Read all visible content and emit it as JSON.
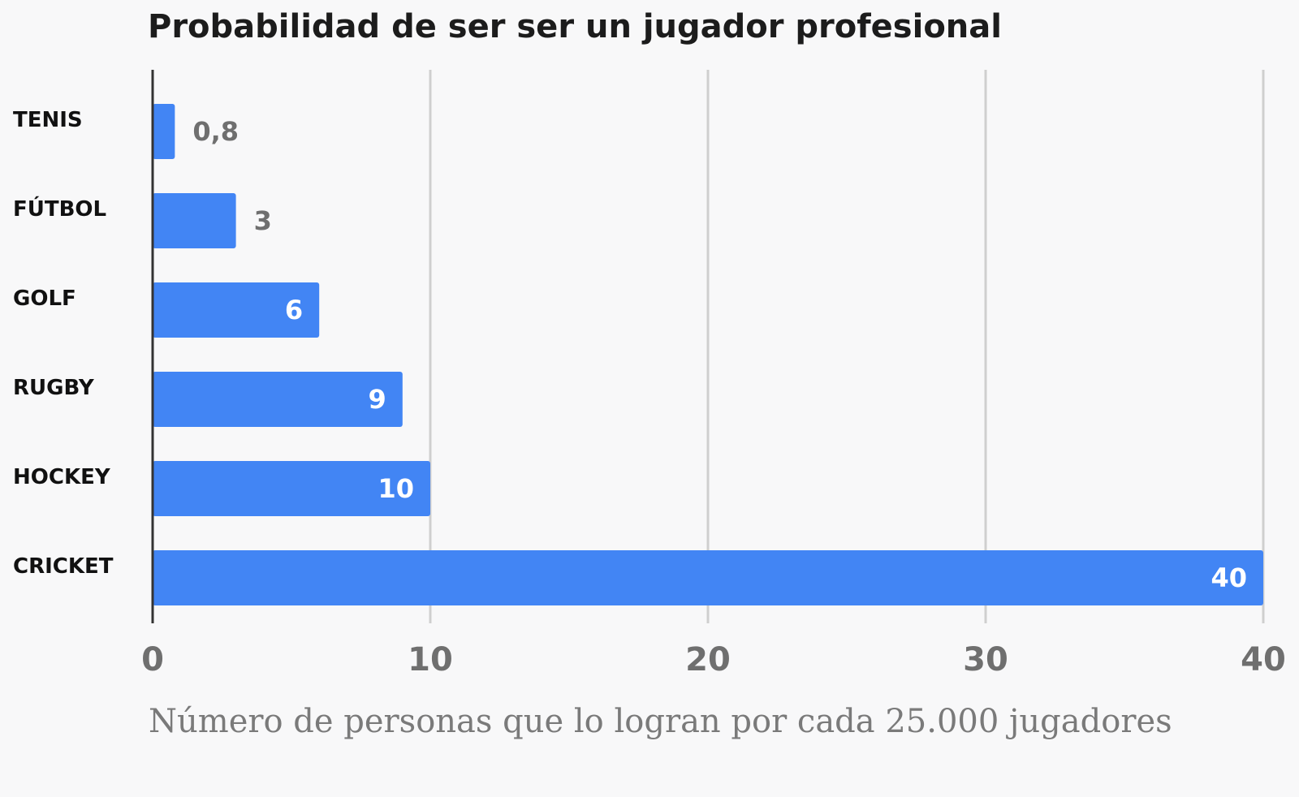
{
  "chart_data": {
    "type": "bar",
    "orientation": "horizontal",
    "title": "Probabilidad de ser ser un jugador profesional",
    "xlabel": "Número de personas que lo logran por cada 25.000 jugadores",
    "ylabel": "",
    "categories": [
      "TENIS",
      "FÚTBOL",
      "GOLF",
      "RUGBY",
      "HOCKEY",
      "CRICKET"
    ],
    "values": [
      0.8,
      3,
      6,
      9,
      10,
      40
    ],
    "value_labels": [
      "0,8",
      "3",
      "6",
      "9",
      "10",
      "40"
    ],
    "xlim": [
      0,
      40
    ],
    "xticks": [
      0,
      10,
      20,
      30,
      40
    ],
    "xtick_labels": [
      "0",
      "10",
      "20",
      "30",
      "40"
    ],
    "grid": true,
    "legend": "none",
    "colors": {
      "bar": "#4285f4",
      "grid": "#cfcfcf",
      "axis": "#333333",
      "value_label_outside": "#6f6f6f",
      "value_label_inside": "#ffffff"
    }
  }
}
